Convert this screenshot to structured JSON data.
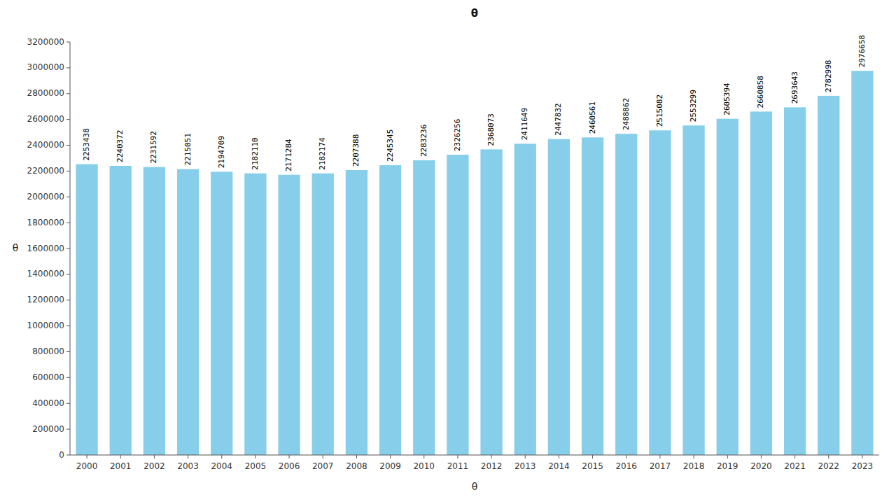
{
  "chart_data": {
    "type": "bar",
    "title": "θ",
    "xlabel": "θ",
    "ylabel": "θ",
    "categories": [
      "2000",
      "2001",
      "2002",
      "2003",
      "2004",
      "2005",
      "2006",
      "2007",
      "2008",
      "2009",
      "2010",
      "2011",
      "2012",
      "2013",
      "2014",
      "2015",
      "2016",
      "2017",
      "2018",
      "2019",
      "2020",
      "2021",
      "2022",
      "2023"
    ],
    "values": [
      2253438,
      2240372,
      2231592,
      2215051,
      2194709,
      2182110,
      2171284,
      2182174,
      2207388,
      2245345,
      2283236,
      2326256,
      2368073,
      2411649,
      2447832,
      2460561,
      2488862,
      2515082,
      2553299,
      2605394,
      2660858,
      2693643,
      2782998,
      2976658
    ],
    "color": "#87CEEB",
    "ylim": [
      0,
      3200000
    ],
    "yticks": [
      0,
      200000,
      400000,
      600000,
      800000,
      1000000,
      1200000,
      1400000,
      1600000,
      1800000,
      2000000,
      2200000,
      2400000,
      2600000,
      2800000,
      3000000,
      3200000
    ],
    "grid": false,
    "data_labels": true
  }
}
